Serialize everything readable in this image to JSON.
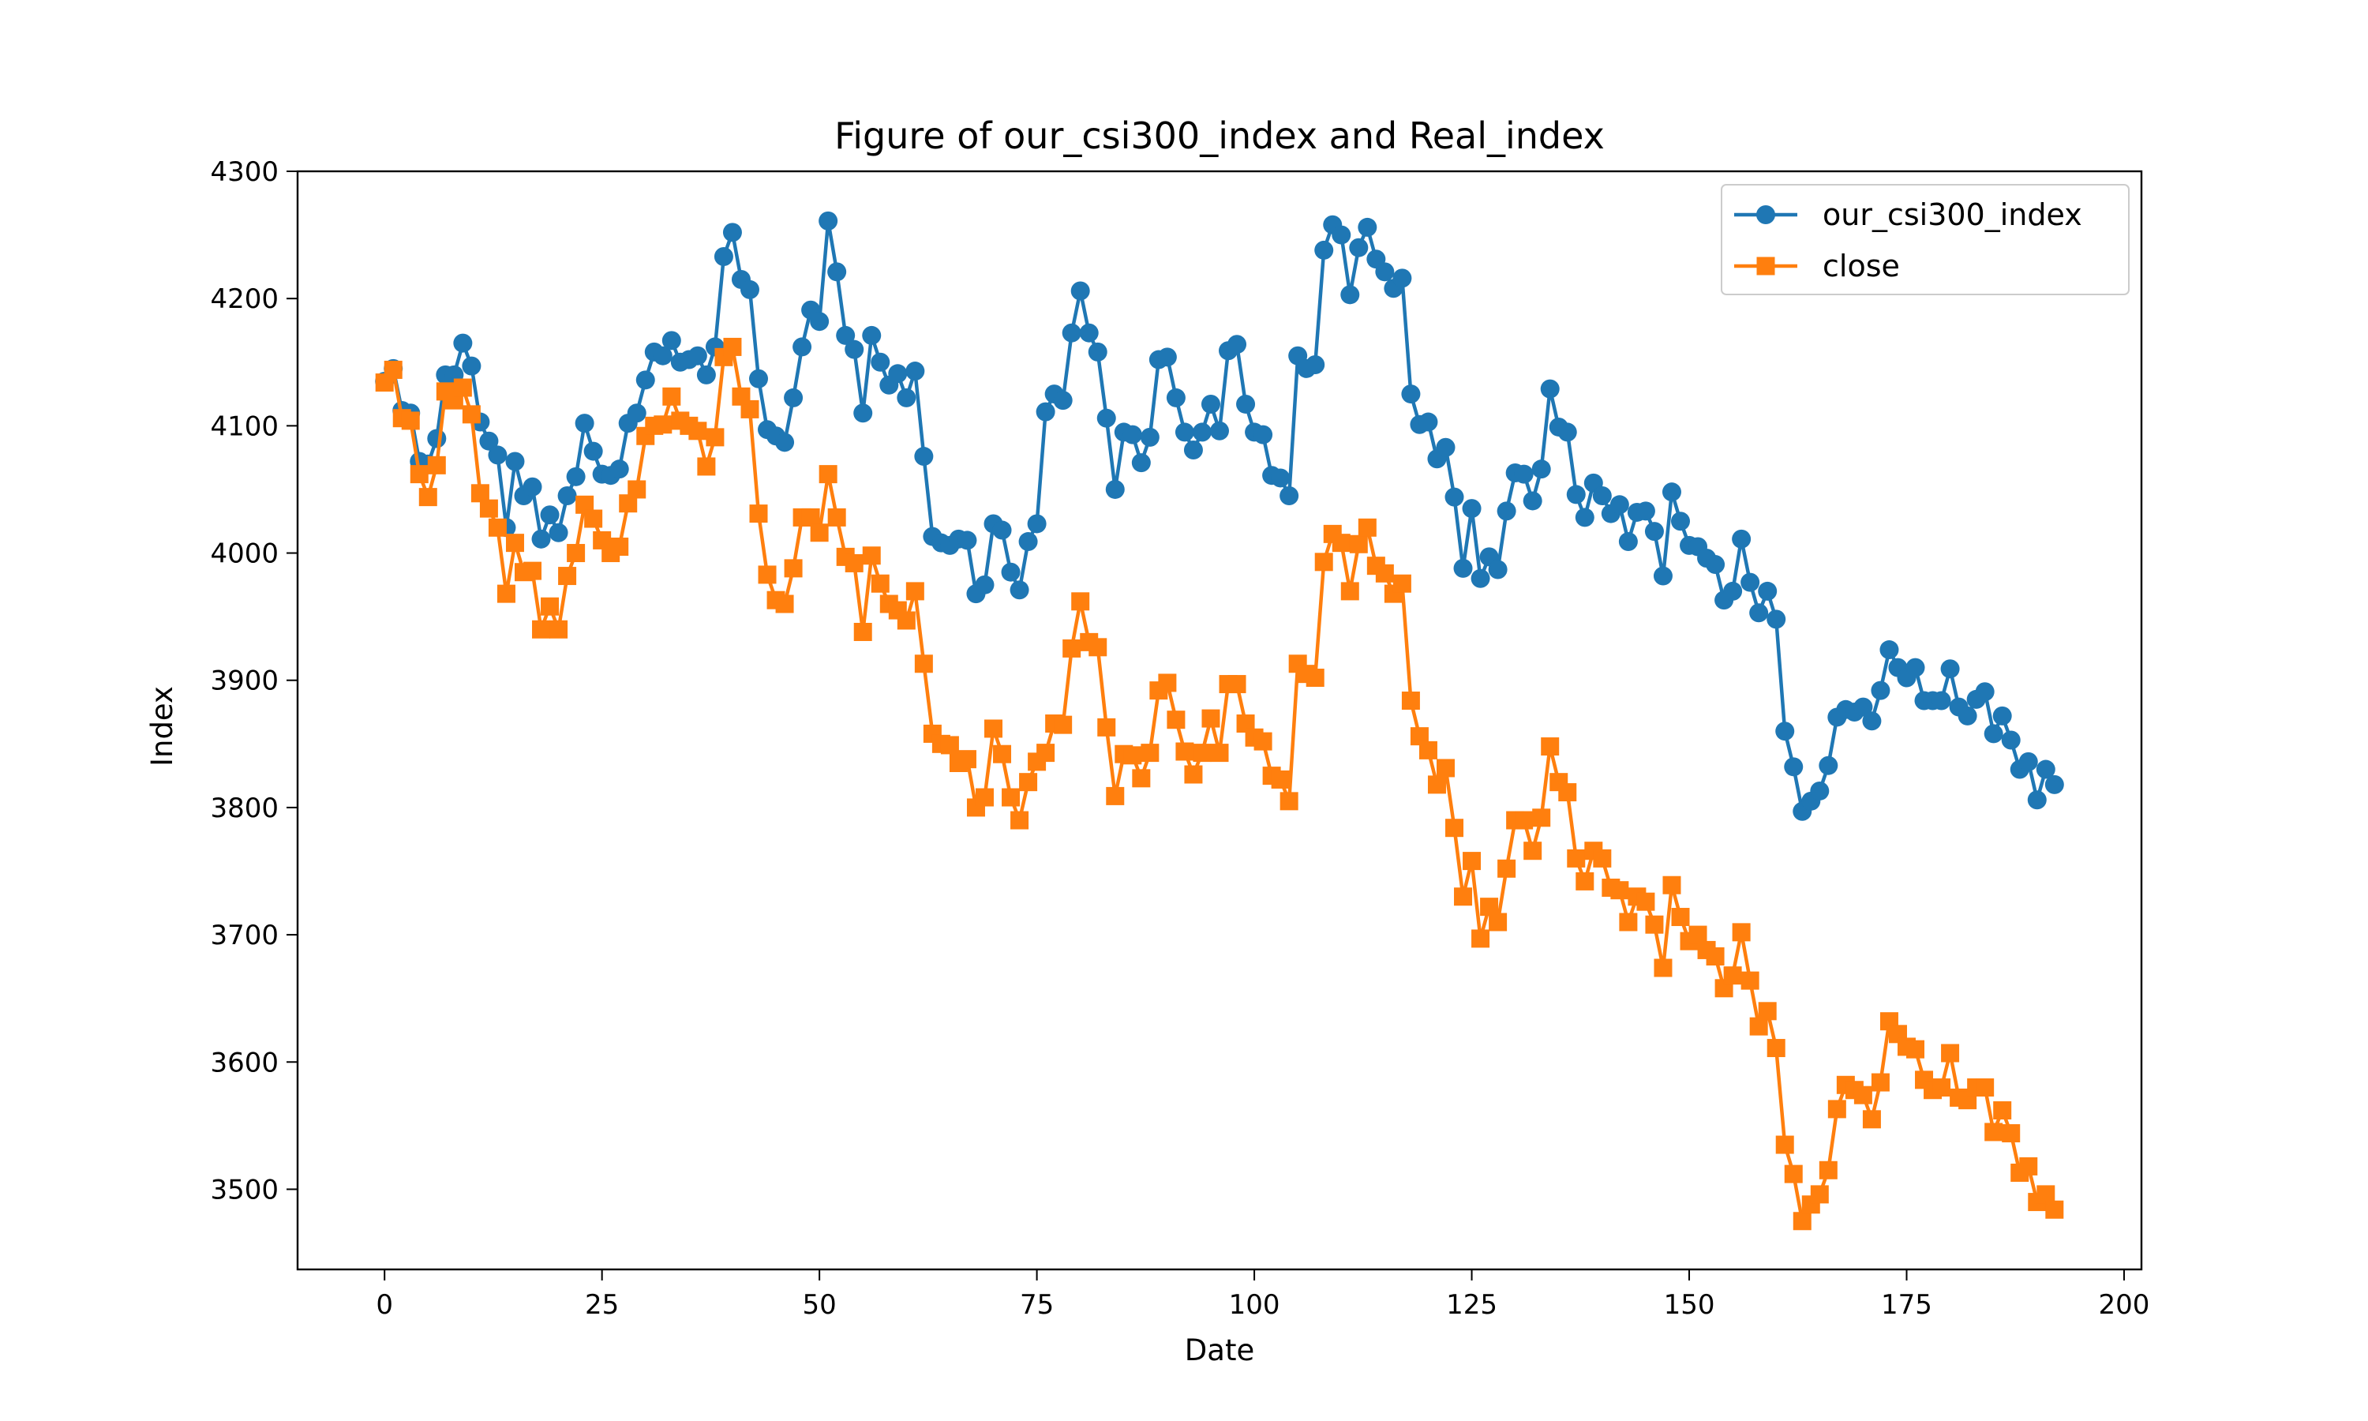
{
  "chart_data": {
    "type": "line",
    "title": "Figure of our_csi300_index and Real_index",
    "xlabel": "Date",
    "ylabel": "Index",
    "xlim": [
      -10,
      202
    ],
    "ylim": [
      3437,
      4300
    ],
    "xticks": [
      0,
      25,
      50,
      75,
      100,
      125,
      150,
      175,
      200
    ],
    "yticks": [
      3500,
      3600,
      3700,
      3800,
      3900,
      4000,
      4100,
      4200,
      4300
    ],
    "grid": false,
    "legend_position": "top-right",
    "series": [
      {
        "name": "our_csi300_index",
        "color": "#1f77b4",
        "marker": "circle",
        "start_x": 0,
        "values": [
          4135,
          4145,
          4112,
          4110,
          4072,
          4070,
          4090,
          4140,
          4140,
          4165,
          4147,
          4103,
          4088,
          4077,
          4020,
          4072,
          4045,
          4052,
          4011,
          4030,
          4016,
          4045,
          4060,
          4102,
          4080,
          4062,
          4061,
          4066,
          4102,
          4110,
          4136,
          4158,
          4155,
          4167,
          4150,
          4152,
          4155,
          4140,
          4162,
          4233,
          4252,
          4215,
          4207,
          4137,
          4097,
          4092,
          4087,
          4122,
          4162,
          4191,
          4182,
          4261,
          4221,
          4171,
          4160,
          4110,
          4171,
          4150,
          4132,
          4141,
          4122,
          4143,
          4076,
          4013,
          4008,
          4006,
          4011,
          4010,
          3968,
          3975,
          4023,
          4018,
          3985,
          3971,
          4009,
          4023,
          4111,
          4125,
          4120,
          4173,
          4206,
          4173,
          4158,
          4106,
          4050,
          4095,
          4093,
          4071,
          4091,
          4152,
          4154,
          4122,
          4095,
          4081,
          4095,
          4117,
          4096,
          4159,
          4164,
          4117,
          4095,
          4093,
          4061,
          4059,
          4045,
          4155,
          4145,
          4148,
          4238,
          4258,
          4250,
          4203,
          4240,
          4256,
          4231,
          4221,
          4208,
          4216,
          4125,
          4101,
          4103,
          4074,
          4083,
          4044,
          3988,
          4035,
          3980,
          3997,
          3987,
          4033,
          4063,
          4062,
          4041,
          4066,
          4129,
          4099,
          4095,
          4046,
          4028,
          4055,
          4045,
          4031,
          4038,
          4009,
          4032,
          4033,
          4017,
          3982,
          4048,
          4025,
          4006,
          4005,
          3996,
          3991,
          3963,
          3970,
          4011,
          3977,
          3953,
          3970,
          3948,
          3860,
          3832,
          3797,
          3805,
          3813,
          3833,
          3871,
          3877,
          3875,
          3879,
          3868,
          3892,
          3924,
          3910,
          3902,
          3910,
          3884,
          3884,
          3884,
          3909,
          3879,
          3872,
          3885,
          3891,
          3858,
          3872,
          3853,
          3830,
          3836,
          3806,
          3830,
          3818
        ]
      },
      {
        "name": "close",
        "color": "#ff7f0e",
        "marker": "square",
        "start_x": 0,
        "values": [
          4134,
          4144,
          4106,
          4104,
          4062,
          4044,
          4069,
          4127,
          4120,
          4130,
          4109,
          4047,
          4035,
          4020,
          3968,
          4008,
          3985,
          3986,
          3940,
          3958,
          3940,
          3982,
          4000,
          4038,
          4027,
          4010,
          4000,
          4005,
          4039,
          4050,
          4092,
          4100,
          4101,
          4123,
          4104,
          4100,
          4096,
          4068,
          4091,
          4154,
          4162,
          4123,
          4113,
          4031,
          3983,
          3963,
          3960,
          3988,
          4028,
          4028,
          4016,
          4062,
          4028,
          3997,
          3992,
          3938,
          3998,
          3976,
          3960,
          3955,
          3947,
          3970,
          3913,
          3858,
          3850,
          3849,
          3835,
          3838,
          3800,
          3808,
          3862,
          3842,
          3808,
          3790,
          3820,
          3836,
          3843,
          3866,
          3865,
          3925,
          3962,
          3930,
          3926,
          3863,
          3809,
          3842,
          3841,
          3823,
          3843,
          3892,
          3898,
          3869,
          3844,
          3826,
          3843,
          3870,
          3843,
          3897,
          3897,
          3866,
          3855,
          3852,
          3825,
          3822,
          3805,
          3913,
          3905,
          3902,
          3993,
          4015,
          4008,
          3970,
          4007,
          4020,
          3990,
          3984,
          3968,
          3976,
          3884,
          3856,
          3845,
          3818,
          3831,
          3784,
          3730,
          3758,
          3697,
          3722,
          3710,
          3752,
          3790,
          3790,
          3766,
          3792,
          3848,
          3820,
          3812,
          3760,
          3742,
          3766,
          3760,
          3737,
          3735,
          3710,
          3730,
          3726,
          3708,
          3674,
          3739,
          3714,
          3695,
          3700,
          3688,
          3683,
          3658,
          3668,
          3702,
          3664,
          3628,
          3640,
          3611,
          3535,
          3512,
          3475,
          3488,
          3496,
          3515,
          3563,
          3582,
          3578,
          3574,
          3555,
          3584,
          3632,
          3622,
          3612,
          3610,
          3586,
          3578,
          3580,
          3607,
          3572,
          3570,
          3580,
          3580,
          3545,
          3562,
          3544,
          3513,
          3518,
          3490,
          3496,
          3484
        ]
      }
    ]
  }
}
